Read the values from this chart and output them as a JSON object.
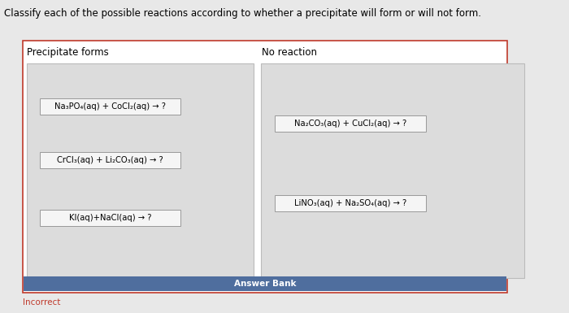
{
  "title": "Classify each of the possible reactions according to whether a precipitate will form or will not form.",
  "col1_header": "Precipitate forms",
  "col2_header": "No reaction",
  "col1_reactions": [
    "Na₃PO₄(aq) + CoCl₂(aq) → ?",
    "CrCl₃(aq) + Li₂CO₃(aq) → ?",
    "KI(aq)+NaCl(aq) → ?"
  ],
  "col2_reactions": [
    "Na₂CO₃(aq) + CuCl₂(aq) → ?",
    "LiNO₃(aq) + Na₂SO₄(aq) → ?"
  ],
  "answer_bank_label": "Answer Bank",
  "incorrect_label": "Incorrect",
  "page_bg": "#e8e8e8",
  "outer_bg": "#ffffff",
  "outer_border_color": "#c0392b",
  "col_bg": "#dcdcdc",
  "col_border": "#bbbbbb",
  "answer_bank_bg": "#4f6e9e",
  "answer_bank_text_color": "#ffffff",
  "reaction_box_bg": "#f5f5f5",
  "reaction_box_border": "#999999",
  "incorrect_color": "#c0392b",
  "title_fontsize": 8.5,
  "header_fontsize": 8.5,
  "reaction_fontsize": 7.2,
  "answer_bank_fontsize": 7.5
}
